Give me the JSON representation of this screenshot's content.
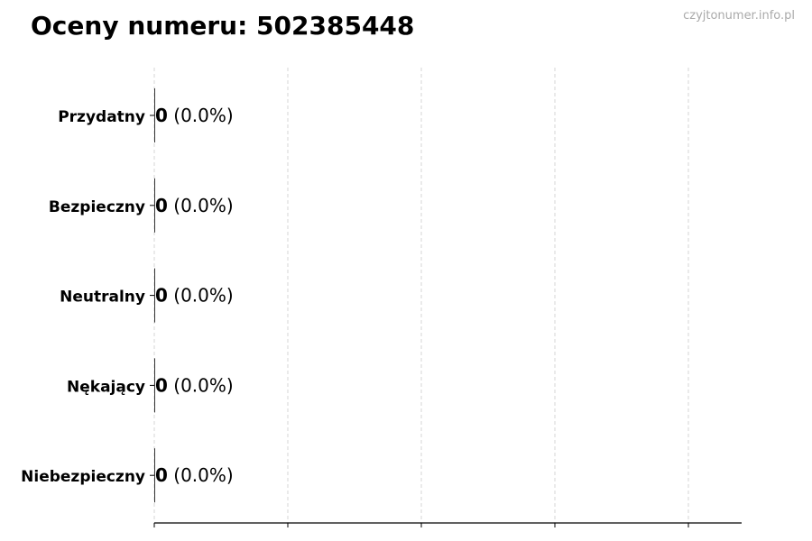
{
  "title": "Oceny numeru: 502385448",
  "watermark": "czyjtonumer.info.pl",
  "chart_data": {
    "type": "bar",
    "orientation": "horizontal",
    "title": "Oceny numeru: 502385448",
    "categories": [
      "Przydatny",
      "Bezpieczny",
      "Neutralny",
      "Nękający",
      "Niebezpieczny"
    ],
    "values": [
      0,
      0,
      0,
      0,
      0
    ],
    "data_labels": [
      {
        "count": "0",
        "percent": "(0.0%)"
      },
      {
        "count": "0",
        "percent": "(0.0%)"
      },
      {
        "count": "0",
        "percent": "(0.0%)"
      },
      {
        "count": "0",
        "percent": "(0.0%)"
      },
      {
        "count": "0",
        "percent": "(0.0%)"
      }
    ],
    "xlabel": "",
    "ylabel": "",
    "grid": "x, dashed",
    "bar_color": "#333333"
  }
}
